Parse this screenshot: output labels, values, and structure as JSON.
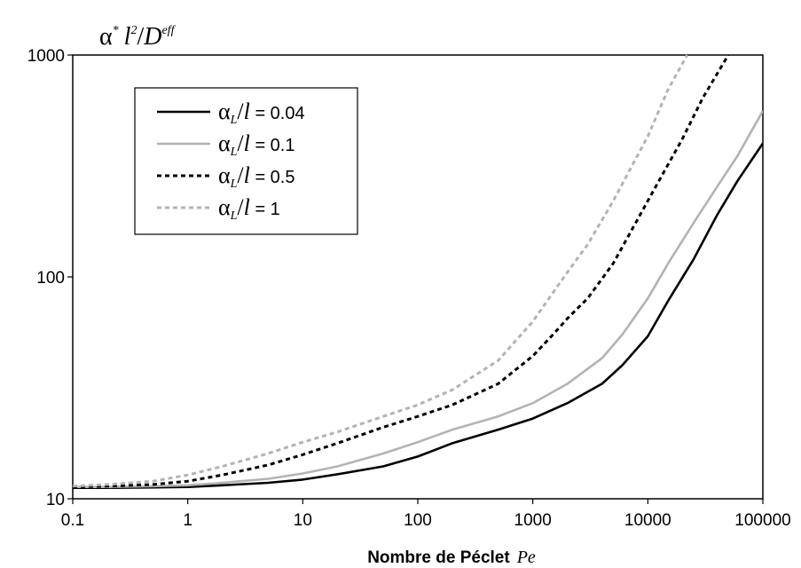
{
  "chart_data": {
    "type": "line",
    "title": "",
    "ylabel": {
      "alpha": "α",
      "star": "*",
      "l": "l",
      "two": "2",
      "slash": "/",
      "D": "D",
      "eff": "eff"
    },
    "xlabel": {
      "bold": "Nombre de Péclet",
      "italic": "Pe"
    },
    "x_scale": "log",
    "y_scale": "log",
    "xlim": [
      0.1,
      100000
    ],
    "ylim": [
      10,
      1000
    ],
    "x_ticks": [
      0.1,
      1,
      10,
      100,
      1000,
      10000,
      100000
    ],
    "x_tick_labels": [
      "0.1",
      "1",
      "10",
      "100",
      "1000",
      "10000",
      "100000"
    ],
    "y_ticks": [
      10,
      100,
      1000
    ],
    "y_tick_labels": [
      "10",
      "100",
      "1000"
    ],
    "grid": false,
    "legend_position": "top-left",
    "series": [
      {
        "legend": {
          "alpha": "α",
          "sub": "L",
          "slash": "/",
          "l": "l",
          "rest": " = 0.04"
        },
        "color": "#000000",
        "dash": "solid",
        "x": [
          0.1,
          0.2,
          0.5,
          1,
          2,
          5,
          10,
          20,
          50,
          100,
          200,
          500,
          1000,
          2000,
          4000,
          6000,
          10000,
          15000,
          25000,
          40000,
          60000,
          100000
        ],
        "y": [
          11.2,
          11.2,
          11.25,
          11.3,
          11.5,
          11.8,
          12.2,
          12.9,
          14.0,
          15.5,
          17.8,
          20.5,
          23,
          27,
          33,
          40,
          54,
          78,
          120,
          190,
          270,
          400
        ]
      },
      {
        "legend": {
          "alpha": "α",
          "sub": "L",
          "slash": "/",
          "l": "l",
          "rest": " = 0.1"
        },
        "color": "#b3b3b3",
        "dash": "solid",
        "x": [
          0.1,
          0.2,
          0.5,
          1,
          2,
          5,
          10,
          20,
          50,
          100,
          200,
          500,
          1000,
          2000,
          4000,
          6000,
          10000,
          15000,
          25000,
          40000,
          60000,
          100000
        ],
        "y": [
          11.3,
          11.3,
          11.4,
          11.5,
          11.8,
          12.3,
          13.0,
          14.0,
          16.0,
          18.0,
          20.5,
          23.5,
          27,
          33,
          43,
          55,
          80,
          115,
          175,
          255,
          350,
          560
        ]
      },
      {
        "legend": {
          "alpha": "α",
          "sub": "L",
          "slash": "/",
          "l": "l",
          "rest": " = 0.5"
        },
        "color": "#000000",
        "dash": "dashed",
        "x": [
          0.1,
          0.2,
          0.5,
          1,
          2,
          5,
          10,
          20,
          50,
          100,
          200,
          500,
          1000,
          1500,
          2000,
          3000,
          5000,
          10000,
          20000,
          30000,
          50000
        ],
        "y": [
          11.3,
          11.4,
          11.6,
          12.0,
          12.8,
          14.2,
          15.8,
          17.8,
          21,
          23.5,
          26.5,
          33,
          44,
          55,
          65,
          80,
          115,
          220,
          420,
          640,
          1000
        ]
      },
      {
        "legend": {
          "alpha": "α",
          "sub": "L",
          "slash": "/",
          "l": "l",
          "rest": " = 1"
        },
        "color": "#b3b3b3",
        "dash": "dashed",
        "x": [
          0.1,
          0.2,
          0.5,
          1,
          2,
          5,
          10,
          20,
          50,
          100,
          200,
          500,
          1000,
          1500,
          2000,
          3000,
          5000,
          10000,
          15000,
          22000
        ],
        "y": [
          11.4,
          11.6,
          12.0,
          12.8,
          14.0,
          16.0,
          18.0,
          20.0,
          23.5,
          26.5,
          31,
          42,
          63,
          85,
          105,
          140,
          220,
          430,
          700,
          1000
        ]
      }
    ]
  }
}
